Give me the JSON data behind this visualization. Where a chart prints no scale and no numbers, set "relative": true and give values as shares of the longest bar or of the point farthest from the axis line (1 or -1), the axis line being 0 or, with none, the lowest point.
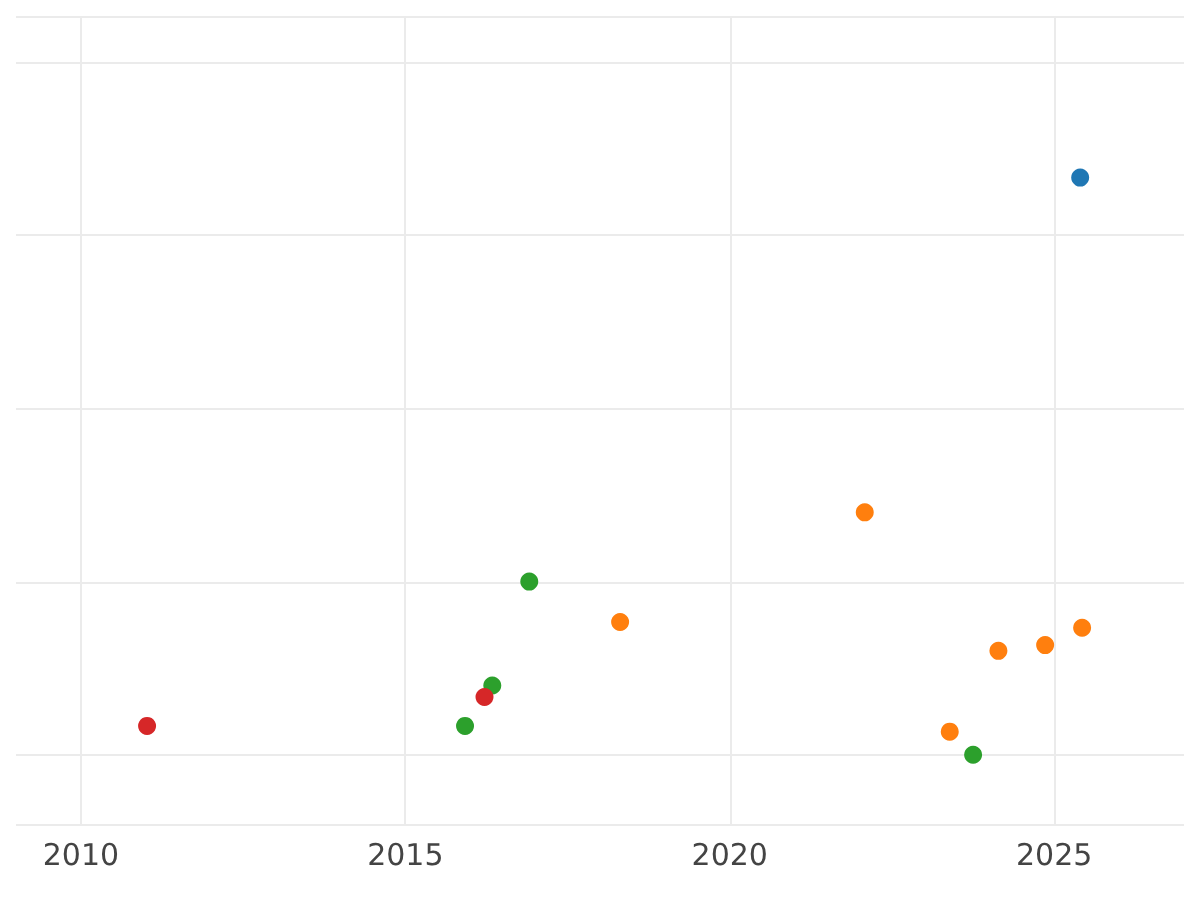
{
  "chart_data": {
    "type": "scatter",
    "relative": true,
    "xlim": [
      2009,
      2027
    ],
    "xticks": [
      2010,
      2015,
      2020,
      2025
    ],
    "grid": true,
    "marker": "circle",
    "series": [
      {
        "color": "#1f77b4",
        "x": [
          2025.4
        ],
        "values": [
          1
        ]
      },
      {
        "color": "#ff7f0e",
        "x": [
          2022.08,
          2018.31,
          2024.14,
          2024.86,
          2025.43,
          2023.39
        ],
        "values": [
          0.42,
          0.23,
          0.18,
          0.19,
          0.22,
          0.04
        ]
      },
      {
        "color": "#2ca02c",
        "x": [
          2016.91,
          2016.34,
          2015.92,
          2023.75
        ],
        "values": [
          0.3,
          0.12,
          0.05,
          0
        ]
      },
      {
        "color": "#d62728",
        "x": [
          2016.22,
          2011.02
        ],
        "values": [
          0.1,
          0.05
        ]
      }
    ]
  }
}
